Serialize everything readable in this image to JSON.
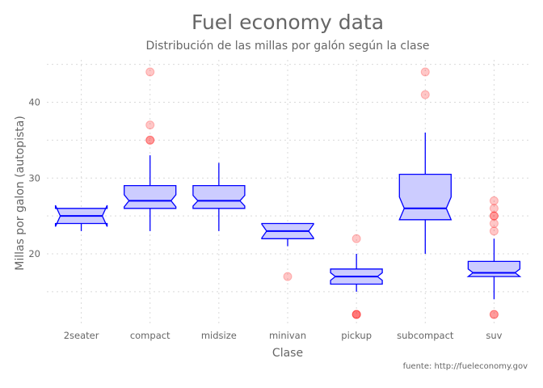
{
  "chart_data": {
    "type": "boxplot",
    "title": "Fuel economy data",
    "subtitle": "Distribución de las millas por galón según la clase",
    "xlabel": "Clase",
    "ylabel": "Millas por galon (autopista)",
    "caption": "fuente: http://fueleconomy.gov",
    "ylim": [
      10.4,
      45.6
    ],
    "yticks": [
      20,
      30,
      40
    ],
    "grid": true,
    "notched": true,
    "colors": {
      "box_fill": "#ccccff",
      "box_line": "#0000ff",
      "outlier": "#ff0000",
      "grid": "#d9d9d9",
      "text": "#666666"
    },
    "categories": [
      "2seater",
      "compact",
      "midsize",
      "minivan",
      "pickup",
      "subcompact",
      "suv"
    ],
    "boxes": [
      {
        "category": "2seater",
        "min": 23,
        "q1": 24,
        "median": 25,
        "q3": 26,
        "max": 26,
        "notch_lo": 23.6,
        "notch_hi": 26.4,
        "outliers": []
      },
      {
        "category": "compact",
        "min": 23,
        "q1": 26,
        "median": 27,
        "q3": 29,
        "max": 33,
        "notch_lo": 26.2,
        "notch_hi": 27.8,
        "outliers": [
          35,
          35,
          37,
          44
        ]
      },
      {
        "category": "midsize",
        "min": 23,
        "q1": 26,
        "median": 27,
        "q3": 29,
        "max": 32,
        "notch_lo": 26.3,
        "notch_hi": 27.7,
        "outliers": []
      },
      {
        "category": "minivan",
        "min": 21,
        "q1": 22,
        "median": 23,
        "q3": 24,
        "max": 24,
        "notch_lo": 22.1,
        "notch_hi": 23.9,
        "outliers": [
          17
        ]
      },
      {
        "category": "pickup",
        "min": 15,
        "q1": 16,
        "median": 17,
        "q3": 18,
        "max": 20,
        "notch_lo": 16.5,
        "notch_hi": 17.5,
        "outliers": [
          12,
          12,
          12,
          22
        ]
      },
      {
        "category": "subcompact",
        "min": 20,
        "q1": 24.5,
        "median": 26,
        "q3": 30.5,
        "max": 36,
        "notch_lo": 24.5,
        "notch_hi": 27.5,
        "outliers": [
          41,
          44
        ]
      },
      {
        "category": "suv",
        "min": 14,
        "q1": 17,
        "median": 17.5,
        "q3": 19,
        "max": 22,
        "notch_lo": 17.0,
        "notch_hi": 18.0,
        "outliers": [
          12,
          12,
          23,
          24,
          25,
          25,
          26,
          27
        ]
      }
    ]
  }
}
